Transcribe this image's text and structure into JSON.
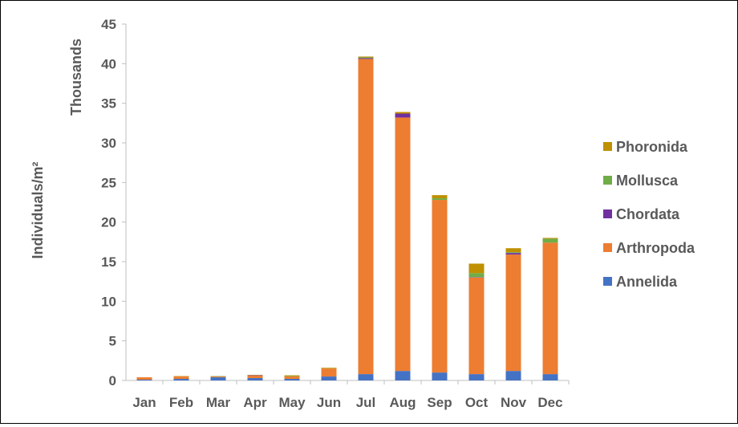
{
  "chart_data": {
    "type": "bar",
    "stacked": true,
    "title": "",
    "xlabel": "",
    "ylabel": "Individuals/m²",
    "y_unit_label": "Thousands",
    "ylim": [
      0,
      45
    ],
    "yticks": [
      0,
      5,
      10,
      15,
      20,
      25,
      30,
      35,
      40,
      45
    ],
    "grid": false,
    "legend_position": "right",
    "categories": [
      "Jan",
      "Feb",
      "Mar",
      "Apr",
      "May",
      "Jun",
      "Jul",
      "Aug",
      "Sep",
      "Oct",
      "Nov",
      "Dec"
    ],
    "series": [
      {
        "name": "Annelida",
        "color": "#4472C4",
        "values": [
          0.1,
          0.2,
          0.4,
          0.3,
          0.2,
          0.5,
          0.8,
          1.2,
          1.0,
          0.8,
          1.2,
          0.8
        ]
      },
      {
        "name": "Arthropoda",
        "color": "#ED7D31",
        "values": [
          0.3,
          0.3,
          0.1,
          0.3,
          0.3,
          1.0,
          39.8,
          32.0,
          21.8,
          12.2,
          14.7,
          16.6
        ]
      },
      {
        "name": "Chordata",
        "color": "#7030A0",
        "values": [
          0,
          0,
          0,
          0.05,
          0,
          0,
          0.1,
          0.5,
          0,
          0.05,
          0.2,
          0
        ]
      },
      {
        "name": "Mollusca",
        "color": "#70AD47",
        "values": [
          0,
          0,
          0.05,
          0,
          0.05,
          0,
          0.1,
          0,
          0.2,
          0.5,
          0.1,
          0.5
        ]
      },
      {
        "name": "Phoronida",
        "color": "#BF9000",
        "values": [
          0,
          0.05,
          0,
          0.05,
          0.1,
          0.1,
          0.1,
          0.2,
          0.4,
          1.2,
          0.5,
          0.1
        ]
      }
    ]
  }
}
